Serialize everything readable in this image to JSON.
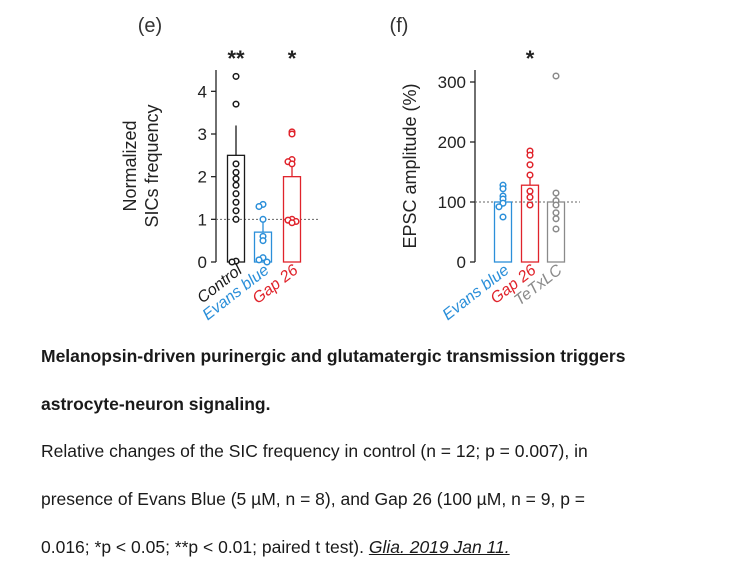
{
  "chart_data": [
    {
      "type": "bar",
      "panel_label": "(e)",
      "ylabel": "Normalized SICs frequency",
      "ylim": [
        0,
        4.5
      ],
      "yticks": [
        "0",
        "1",
        "2",
        "3",
        "4"
      ],
      "reference_line": 1,
      "categories": [
        "Control",
        "Evans blue",
        "Gap 26"
      ],
      "colors": [
        "#1a1a1a",
        "#2b8fd9",
        "#e0232b"
      ],
      "values": [
        2.5,
        0.7,
        2.0
      ],
      "error_upper": [
        3.2,
        1.0,
        2.4
      ],
      "points": [
        [
          4.35,
          3.7,
          2.3,
          2.1,
          1.95,
          1.8,
          1.6,
          1.4,
          1.2,
          1.0,
          0.02,
          0.0
        ],
        [
          1.35,
          1.3,
          1.0,
          0.6,
          0.5,
          0.1,
          0.05,
          0.0
        ],
        [
          3.05,
          3.0,
          2.4,
          2.35,
          2.3,
          1.0,
          0.98,
          0.95,
          0.92
        ]
      ],
      "significance": [
        "**",
        "",
        "*"
      ]
    },
    {
      "type": "bar",
      "panel_label": "(f)",
      "ylabel": "EPSC amplitude (%)",
      "ylim": [
        0,
        320
      ],
      "yticks": [
        "0",
        "100",
        "200",
        "300"
      ],
      "reference_line": 100,
      "categories": [
        "Evans blue",
        "Gap 26",
        "TeTxLC"
      ],
      "colors": [
        "#2b8fd9",
        "#e0232b",
        "#8a8a8a"
      ],
      "values": [
        100,
        128,
        100
      ],
      "error_upper": [
        112,
        145,
        118
      ],
      "points": [
        [
          128,
          122,
          110,
          105,
          98,
          92,
          75
        ],
        [
          185,
          178,
          162,
          145,
          118,
          108,
          95
        ],
        [
          310,
          115,
          102,
          95,
          82,
          72,
          55
        ]
      ],
      "significance": [
        "",
        "*",
        ""
      ]
    }
  ],
  "caption": {
    "title_line1": "Melanopsin-driven purinergic and glutamatergic transmission triggers",
    "title_line2": "astrocyte-neuron signaling.",
    "body_line1": "Relative changes of the SIC frequency in control (n = 12; p = 0.007), in",
    "body_line2": "presence of Evans Blue (5 µM, n = 8), and Gap 26 (100 µM, n = 9, p =",
    "body_line3": "0.016; *p < 0.05; **p < 0.01; paired t test).",
    "journal": "Glia. 2019 Jan 11."
  }
}
